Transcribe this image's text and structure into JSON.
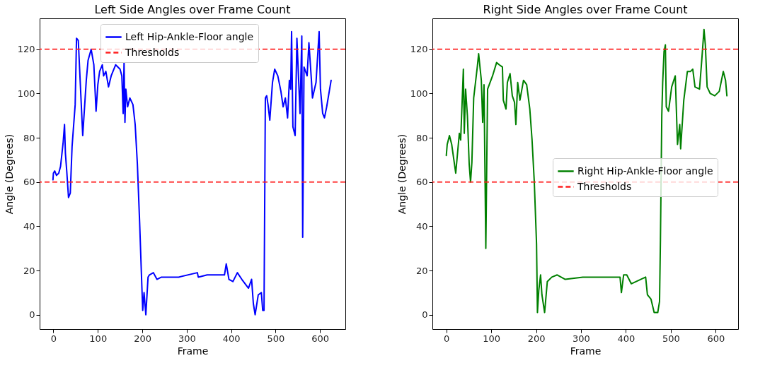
{
  "chart_data": [
    {
      "type": "line",
      "title": "Left Side Angles over Frame Count",
      "xlabel": "Frame",
      "ylabel": "Angle (Degrees)",
      "xlim": [
        -31,
        657
      ],
      "ylim": [
        -6.5,
        134
      ],
      "xticks": [
        0,
        100,
        200,
        300,
        400,
        500,
        600
      ],
      "yticks": [
        0,
        20,
        40,
        60,
        80,
        100,
        120
      ],
      "grid": false,
      "legend": "top",
      "ref_lines": [
        {
          "axis": "y",
          "value": 120,
          "label": "Thresholds",
          "color": "#ff2020",
          "line_style": "dashed"
        },
        {
          "axis": "y",
          "value": 60,
          "color": "#ff2020",
          "line_style": "dashed"
        }
      ],
      "series": [
        {
          "name": "Left Hip-Ankle-Floor angle",
          "color": "#0000ff",
          "x": [
            -1,
            0,
            3,
            7,
            12,
            16,
            22,
            25,
            27,
            30,
            34,
            38,
            42,
            49,
            52,
            56,
            66,
            74,
            78,
            85,
            91,
            96,
            100,
            104,
            110,
            113,
            118,
            124,
            130,
            140,
            150,
            154,
            157,
            159,
            161,
            163,
            167,
            172,
            179,
            184,
            189,
            194,
            199,
            201,
            204,
            208,
            213,
            216,
            225,
            233,
            243,
            282,
            324,
            326,
            346,
            385,
            389,
            395,
            404,
            414,
            424,
            439,
            446,
            450,
            454,
            461,
            468,
            471,
            474,
            477,
            480,
            483,
            487,
            493,
            498,
            505,
            512,
            517,
            522,
            527,
            531,
            534,
            536,
            539,
            544,
            548,
            555,
            559,
            561,
            564,
            571,
            575,
            581,
            583,
            591,
            598,
            601,
            606,
            610,
            615,
            625
          ],
          "values": [
            61,
            64,
            65,
            63,
            64,
            67,
            78,
            86,
            73,
            65,
            53,
            55,
            76,
            95,
            125,
            124,
            81,
            106,
            115,
            120,
            113,
            92,
            104,
            110,
            113,
            108,
            110,
            103,
            108,
            113,
            111,
            108,
            91,
            114,
            87,
            102,
            94,
            98,
            95,
            86,
            68,
            42,
            13,
            2,
            10,
            0,
            17,
            18,
            19,
            16,
            17,
            17,
            19,
            17,
            18,
            18,
            23,
            16,
            15,
            19,
            16,
            12,
            16,
            5,
            0,
            9,
            10,
            2,
            2,
            98,
            99,
            95,
            88,
            105,
            111,
            108,
            101,
            94,
            98,
            89,
            106,
            102,
            128,
            85,
            81,
            125,
            91,
            126,
            35,
            112,
            108,
            123,
            105,
            98,
            105,
            128,
            102,
            91,
            89,
            94,
            106
          ]
        }
      ]
    },
    {
      "type": "line",
      "title": "Right Side Angles over Frame Count",
      "xlabel": "Frame",
      "ylabel": "Angle (Degrees)",
      "xlim": [
        -31,
        650
      ],
      "ylim": [
        -6.5,
        134
      ],
      "xticks": [
        0,
        100,
        200,
        300,
        400,
        500,
        600
      ],
      "yticks": [
        0,
        20,
        40,
        60,
        80,
        100,
        120
      ],
      "grid": false,
      "legend": "right",
      "ref_lines": [
        {
          "axis": "y",
          "value": 120,
          "label": "Thresholds",
          "color": "#ff2020",
          "line_style": "dashed"
        },
        {
          "axis": "y",
          "value": 60,
          "color": "#ff2020",
          "line_style": "dashed"
        }
      ],
      "series": [
        {
          "name": "Right Hip-Ankle-Floor angle",
          "color": "#008000",
          "x": [
            0,
            2,
            7,
            12,
            21,
            29,
            32,
            38,
            40,
            43,
            47,
            51,
            54,
            57,
            61,
            69,
            72,
            78,
            81,
            84,
            88,
            92,
            103,
            112,
            118,
            125,
            127,
            133,
            136,
            142,
            147,
            152,
            155,
            159,
            164,
            172,
            179,
            186,
            191,
            196,
            201,
            203,
            206,
            210,
            213,
            219,
            225,
            235,
            247,
            265,
            304,
            343,
            387,
            390,
            395,
            402,
            412,
            444,
            448,
            456,
            463,
            471,
            475,
            477,
            480,
            482,
            485,
            488,
            490,
            495,
            502,
            510,
            515,
            520,
            522,
            529,
            537,
            544,
            549,
            554,
            564,
            569,
            574,
            577,
            581,
            588,
            598,
            608,
            617,
            622,
            625
          ],
          "values": [
            72,
            77,
            81,
            77,
            64,
            82,
            79,
            111,
            82,
            102,
            90,
            68,
            60,
            69,
            98,
            112,
            118,
            106,
            87,
            104,
            30,
            102,
            108,
            114,
            113,
            112,
            97,
            93,
            105,
            109,
            99,
            96,
            86,
            105,
            97,
            106,
            104,
            93,
            79,
            60,
            32,
            1,
            11,
            18,
            9,
            1,
            15,
            17,
            18,
            16,
            17,
            17,
            17,
            10,
            18,
            18,
            14,
            17,
            9,
            7,
            1,
            1,
            6,
            34,
            90,
            105,
            119,
            122,
            94,
            92,
            103,
            108,
            77,
            86,
            75,
            97,
            110,
            110,
            111,
            103,
            102,
            115,
            129,
            122,
            103,
            100,
            99,
            101,
            110,
            106,
            99
          ]
        }
      ]
    }
  ]
}
